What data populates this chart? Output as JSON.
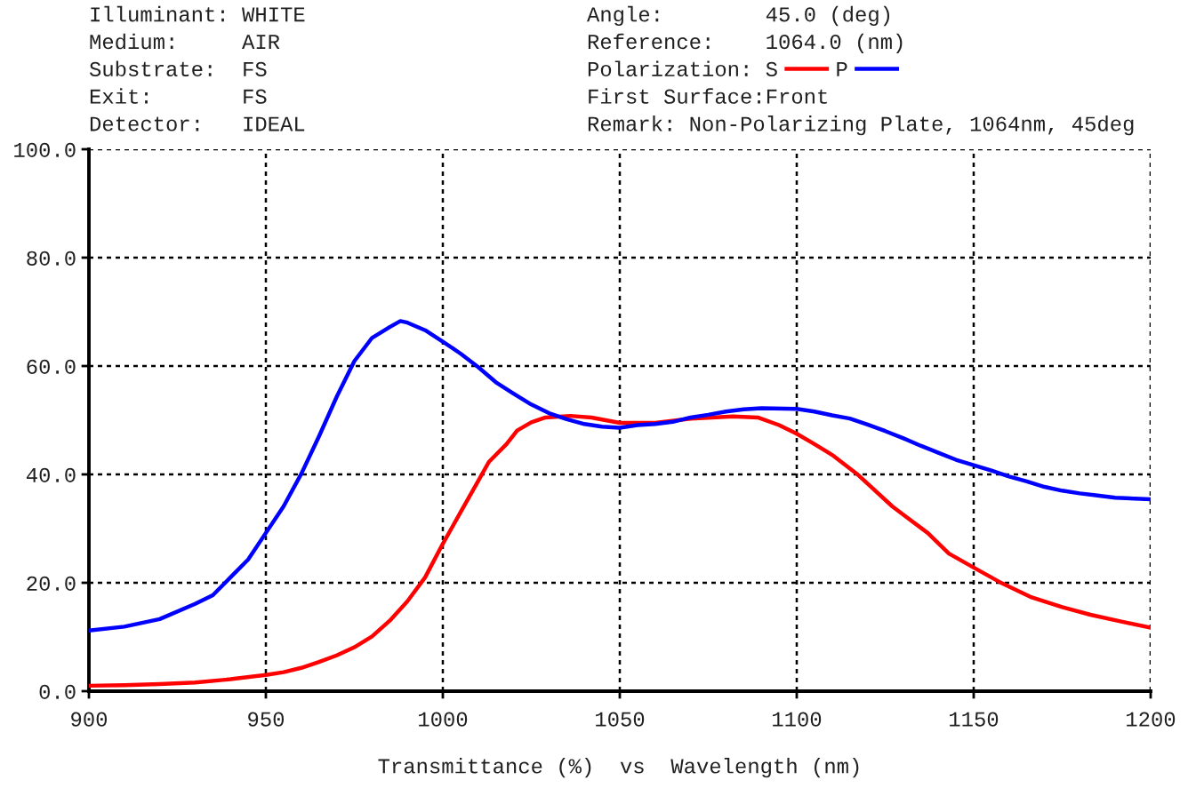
{
  "chart_data": {
    "type": "line",
    "xlabel": "Transmittance (%)  vs  Wavelength (nm)",
    "legend_title": "Polarization:",
    "legend": "top right",
    "annotations": [
      "Illuminant: WHITE",
      "Medium:     AIR",
      "Substrate:  FS",
      "Exit:       FS",
      "Detector:   IDEAL",
      "Angle:        45.0 (deg)",
      "Reference:    1064.0 (nm)",
      "First Surface:Front",
      "Remark: Non-Polarizing Plate, 1064nm, 45deg"
    ],
    "xlim": [
      900,
      1200
    ],
    "xticks": [
      900,
      950,
      1000,
      1050,
      1100,
      1150,
      1200
    ],
    "ylim": [
      0,
      100
    ],
    "yticks": [
      {
        "value": 0,
        "label": "0.0"
      },
      {
        "value": 20,
        "label": "20.0"
      },
      {
        "value": 40,
        "label": "40.0"
      },
      {
        "value": 60,
        "label": "60.0"
      },
      {
        "value": 80,
        "label": "80.0"
      },
      {
        "value": 100,
        "label": "100.0"
      }
    ],
    "grid": true,
    "series": [
      {
        "name": "S",
        "color": "#ff0000",
        "x": [
          900,
          910,
          920,
          930,
          940,
          950,
          955,
          960,
          965,
          970,
          975,
          980,
          985,
          990,
          995,
          1000,
          1005,
          1010,
          1013,
          1018,
          1021,
          1025,
          1029,
          1036,
          1042,
          1050,
          1060,
          1070,
          1082,
          1089,
          1095,
          1100,
          1105,
          1110,
          1117,
          1127,
          1137,
          1143,
          1150,
          1158,
          1166,
          1175,
          1183,
          1192,
          1200
        ],
        "values": [
          1.0,
          1.1,
          1.3,
          1.6,
          2.2,
          3.0,
          3.5,
          4.3,
          5.4,
          6.6,
          8.1,
          10.1,
          13.0,
          16.6,
          21.0,
          27.2,
          33.0,
          38.8,
          42.3,
          45.6,
          48.1,
          49.6,
          50.5,
          50.8,
          50.5,
          49.5,
          49.5,
          50.3,
          50.7,
          50.5,
          49.1,
          47.5,
          45.6,
          43.6,
          40.1,
          34.1,
          29.2,
          25.4,
          22.8,
          19.9,
          17.4,
          15.5,
          14.1,
          12.8,
          11.7
        ]
      },
      {
        "name": "P",
        "color": "#0000ff",
        "x": [
          900,
          910,
          920,
          930,
          935,
          940,
          945,
          950,
          955,
          960,
          965,
          970,
          975,
          980,
          985,
          988,
          990,
          995,
          1000,
          1005,
          1010,
          1015,
          1020,
          1025,
          1030,
          1035,
          1040,
          1045,
          1050,
          1055,
          1060,
          1065,
          1070,
          1075,
          1080,
          1085,
          1090,
          1100,
          1105,
          1110,
          1115,
          1120,
          1125,
          1130,
          1135,
          1140,
          1145,
          1150,
          1155,
          1160,
          1165,
          1170,
          1175,
          1180,
          1185,
          1190,
          1200
        ],
        "values": [
          11.2,
          11.9,
          13.3,
          16.1,
          17.7,
          21.0,
          24.3,
          29.2,
          34.1,
          40.1,
          47.0,
          54.3,
          60.9,
          65.2,
          67.2,
          68.3,
          68.0,
          66.6,
          64.5,
          62.3,
          59.8,
          57.0,
          54.9,
          52.9,
          51.3,
          50.2,
          49.3,
          48.8,
          48.6,
          49.1,
          49.3,
          49.7,
          50.5,
          51.0,
          51.6,
          52.0,
          52.2,
          52.1,
          51.6,
          50.9,
          50.3,
          49.2,
          48.0,
          46.7,
          45.3,
          44.0,
          42.7,
          41.7,
          40.7,
          39.6,
          38.7,
          37.7,
          37.0,
          36.5,
          36.1,
          35.7,
          35.4
        ]
      }
    ]
  }
}
